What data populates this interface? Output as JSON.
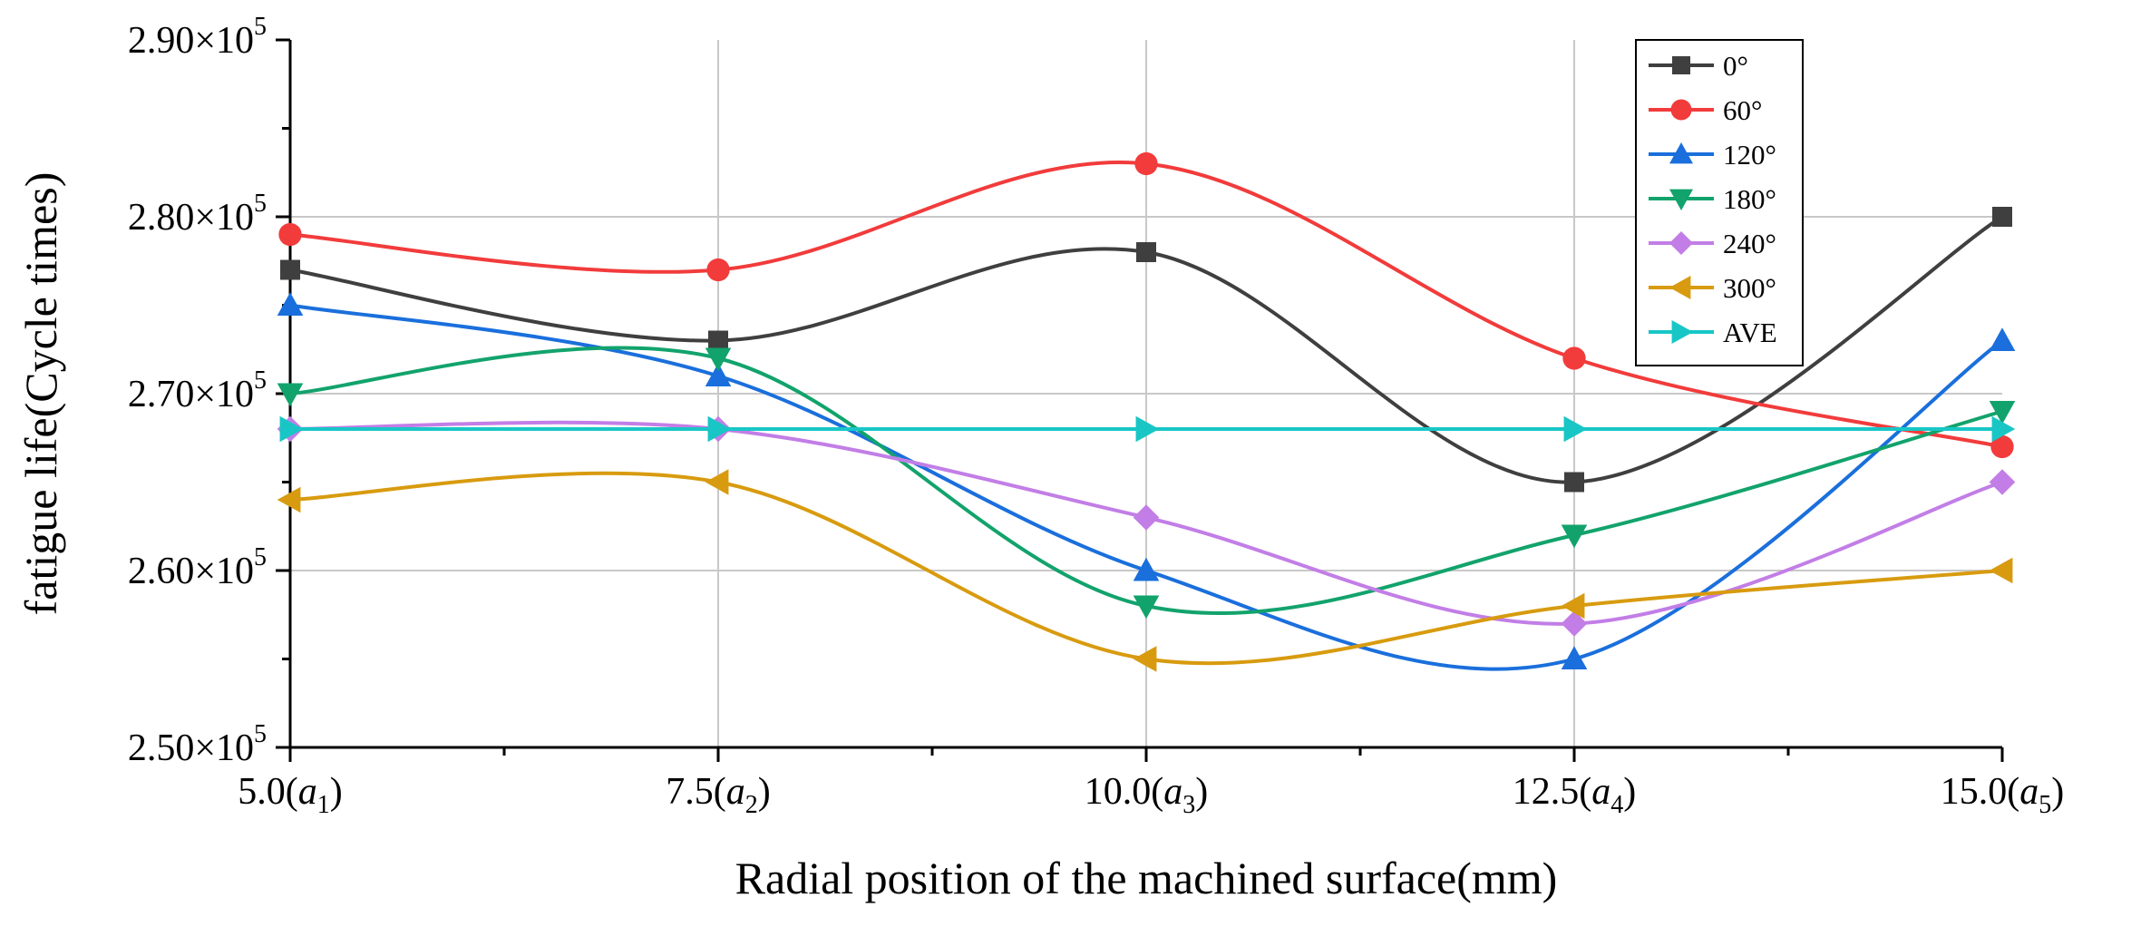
{
  "chart_data": {
    "type": "line",
    "smooth": true,
    "xlabel": "Radial position of the machined surface(mm)",
    "ylabel": "fatigue life(Cycle times)",
    "xlim": [
      5.0,
      15.0
    ],
    "ylim": [
      2.5,
      2.9
    ],
    "y_exponent": "5",
    "grid": true,
    "legend_position": "top-right",
    "x": [
      5.0,
      7.5,
      10.0,
      12.5,
      15.0
    ],
    "x_tick_labels": [
      {
        "num": "5.0(",
        "var": "a",
        "sub": "1",
        "close": ")"
      },
      {
        "num": "7.5(",
        "var": "a",
        "sub": "2",
        "close": ")"
      },
      {
        "num": "10.0(",
        "var": "a",
        "sub": "3",
        "close": ")"
      },
      {
        "num": "12.5(",
        "var": "a",
        "sub": "4",
        "close": ")"
      },
      {
        "num": "15.0(",
        "var": "a",
        "sub": "5",
        "close": ")"
      }
    ],
    "y_ticks": [
      2.5,
      2.6,
      2.7,
      2.8,
      2.9
    ],
    "y_tick_labels": [
      "2.50×10",
      "2.60×10",
      "2.70×10",
      "2.80×10",
      "2.90×10"
    ],
    "series": [
      {
        "name": "0°",
        "color": "#3f3f3f",
        "marker": "square",
        "values": [
          2.77,
          2.73,
          2.78,
          2.65,
          2.8
        ]
      },
      {
        "name": "60°",
        "color": "#f23b3b",
        "marker": "circle",
        "values": [
          2.79,
          2.77,
          2.83,
          2.72,
          2.67
        ]
      },
      {
        "name": "120°",
        "color": "#1a6fdc",
        "marker": "triangle-up",
        "values": [
          2.75,
          2.71,
          2.6,
          2.55,
          2.73
        ]
      },
      {
        "name": "180°",
        "color": "#12a36c",
        "marker": "triangle-down",
        "values": [
          2.7,
          2.72,
          2.58,
          2.62,
          2.69
        ]
      },
      {
        "name": "240°",
        "color": "#c27ee6",
        "marker": "diamond",
        "values": [
          2.68,
          2.68,
          2.63,
          2.57,
          2.65
        ]
      },
      {
        "name": "300°",
        "color": "#d89b0f",
        "marker": "triangle-left",
        "values": [
          2.64,
          2.65,
          2.55,
          2.58,
          2.6
        ]
      },
      {
        "name": "AVE",
        "color": "#18c6c6",
        "marker": "triangle-right",
        "values": [
          2.68,
          2.68,
          2.68,
          2.68,
          2.68
        ]
      }
    ]
  }
}
